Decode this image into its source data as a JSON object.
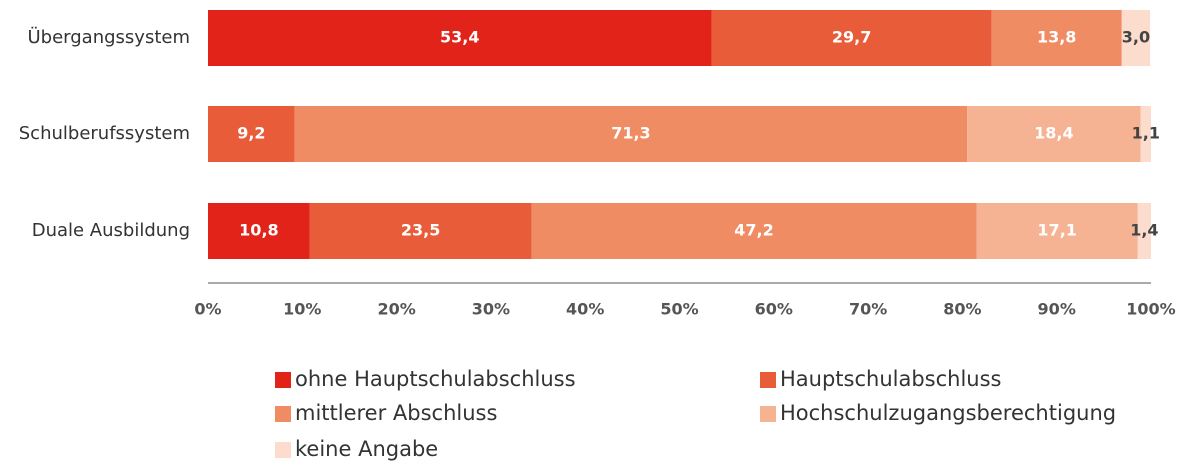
{
  "chart_data": {
    "type": "stacked-bar-horizontal",
    "categories": [
      "Übergangssystem",
      "Schulberufssystem",
      "Duale Ausbildung"
    ],
    "series": [
      {
        "name": "ohne Hauptschulabschluss",
        "color": "#e2231a",
        "values": [
          53.4,
          null,
          10.8
        ],
        "value_labels": [
          "53,4",
          null,
          "10,8"
        ]
      },
      {
        "name": "Hauptschulabschluss",
        "color": "#e85c3a",
        "values": [
          29.7,
          9.2,
          23.5
        ],
        "value_labels": [
          "29,7",
          "9,2",
          "23,5"
        ]
      },
      {
        "name": "mittlerer Abschluss",
        "color": "#f08c64",
        "values": [
          13.8,
          71.3,
          47.2
        ],
        "value_labels": [
          "13,8",
          "71,3",
          "47,2"
        ]
      },
      {
        "name": "Hochschulzugangsberechtigung",
        "color": "#f5b394",
        "values": [
          null,
          18.4,
          17.1
        ],
        "value_labels": [
          null,
          "18,4",
          "17,1"
        ]
      },
      {
        "name": "keine Angabe",
        "color": "#fbdccd",
        "values": [
          3.0,
          1.1,
          1.4
        ],
        "value_labels": [
          "3,0",
          "1,1",
          "1,4"
        ]
      }
    ],
    "xlim": [
      0,
      100
    ],
    "xticks": [
      {
        "value": 0,
        "label": "0%"
      },
      {
        "value": 10,
        "label": "10%"
      },
      {
        "value": 20,
        "label": "20%"
      },
      {
        "value": 30,
        "label": "30%"
      },
      {
        "value": 40,
        "label": "40%"
      },
      {
        "value": 50,
        "label": "50%"
      },
      {
        "value": 60,
        "label": "60%"
      },
      {
        "value": 70,
        "label": "70%"
      },
      {
        "value": 80,
        "label": "80%"
      },
      {
        "value": 90,
        "label": "90%"
      },
      {
        "value": 100,
        "label": "100%"
      }
    ],
    "legend": "bottom"
  }
}
